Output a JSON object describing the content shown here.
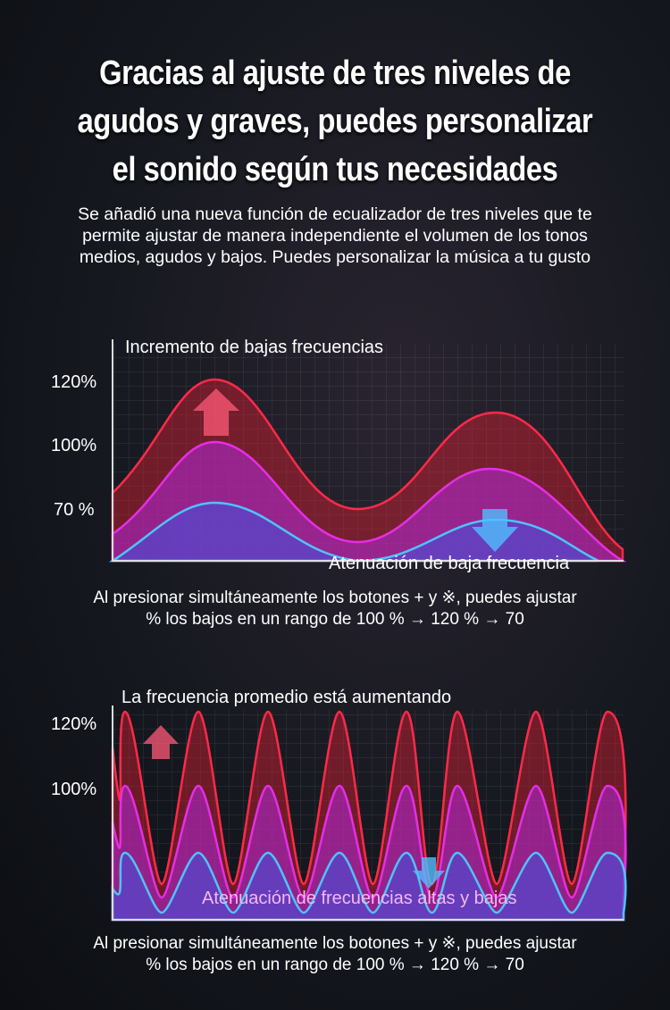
{
  "headline": [
    "Gracias al ajuste de tres niveles de",
    "agudos y graves, puedes personalizar",
    "el sonido según tus necesidades"
  ],
  "subtitle": [
    "Se añadió una nueva función de ecualizador de tres niveles que te",
    "permite ajustar de manera independiente el volumen de los tonos",
    "medios, agudos y bajos. Puedes personalizar la música a tu gusto"
  ],
  "chart1": {
    "title": "Incremento de bajas frecuencias",
    "ticks": [
      "120%",
      "100%",
      "70 %"
    ],
    "annotation": "Atenuación de baja frecuencia",
    "caption": [
      "Al presionar simultáneamente los botones + y ※, puedes ajustar",
      "% los bajos en un rango de 100 % → 120 % → 70"
    ]
  },
  "chart2": {
    "title": "La frecuencia promedio está aumentando",
    "ticks": [
      "120%",
      "100%"
    ],
    "annotation": "Atenuación de frecuencias altas y bajas",
    "caption": [
      "Al presionar simultáneamente los botones + y ※, puedes ajustar",
      "% los bajos en un rango de 100 % → 120 % → 70"
    ]
  },
  "colors": {
    "red": "#ff2a4a",
    "magenta": "#e62ee6",
    "blue": "#4fc3f7"
  }
}
